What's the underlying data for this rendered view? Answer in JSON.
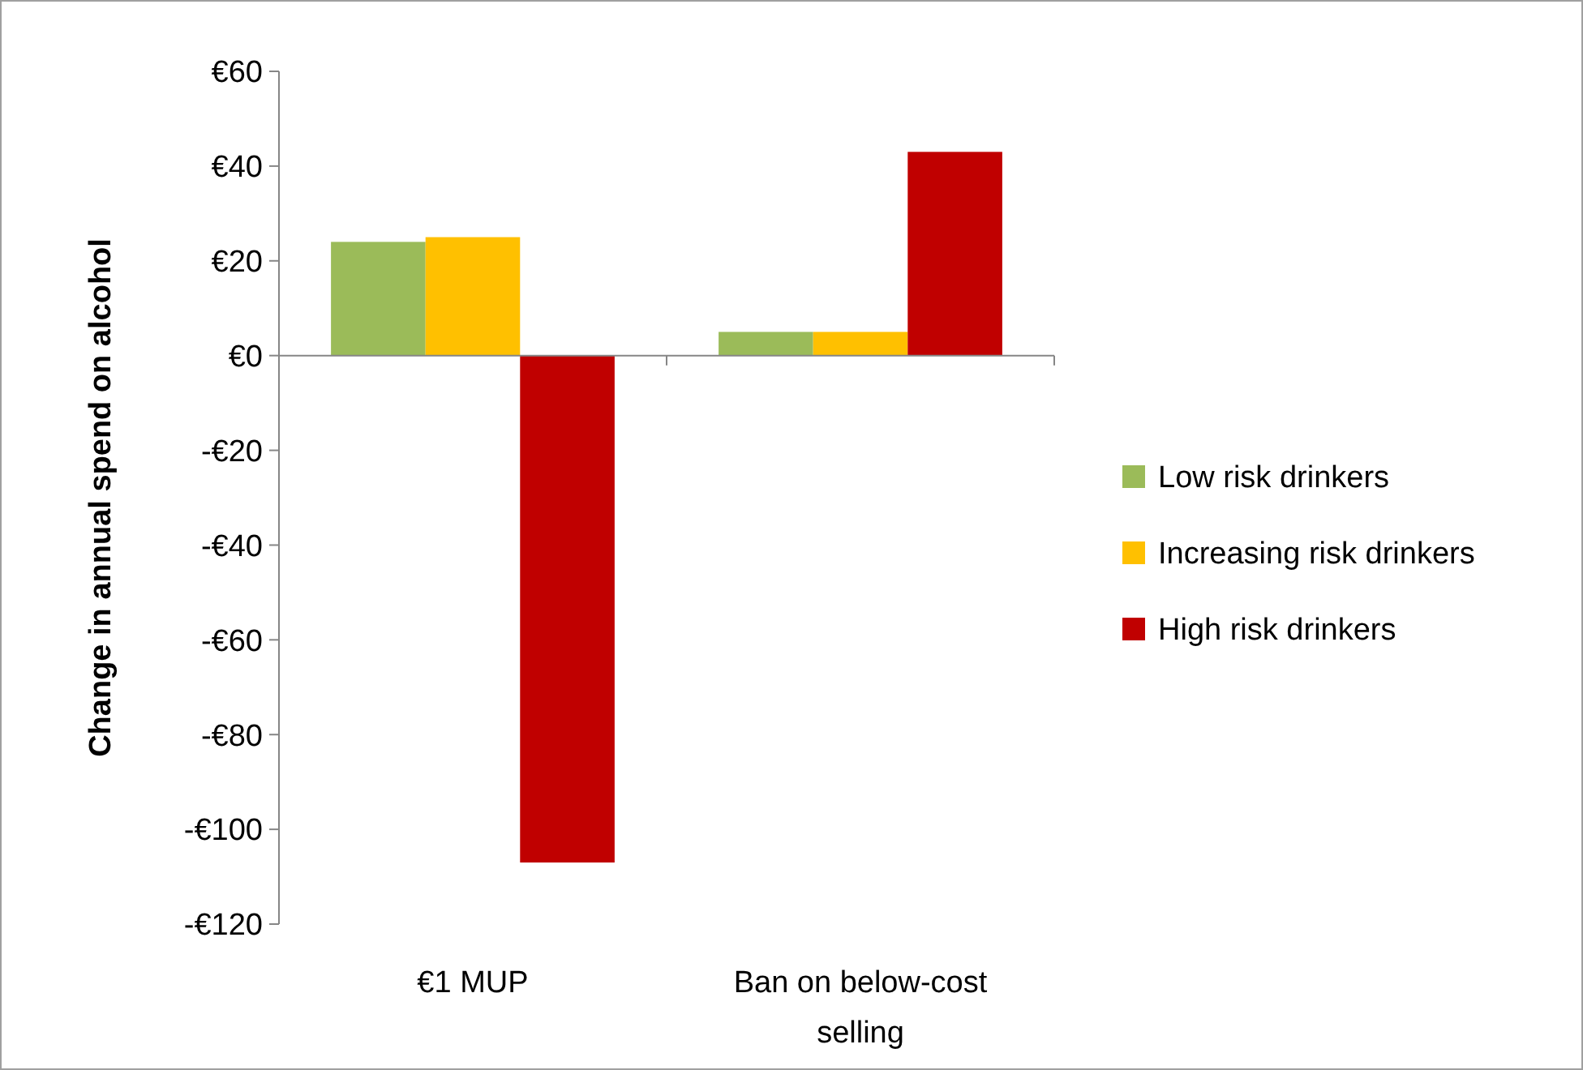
{
  "chart_data": {
    "type": "bar",
    "ylabel": "Change in annual spend on alcohol",
    "categories": [
      "€1 MUP",
      "Ban on below-cost selling"
    ],
    "series": [
      {
        "name": "Low risk drinkers",
        "color": "#9bbb59",
        "values": [
          24,
          5
        ]
      },
      {
        "name": "Increasing risk drinkers",
        "color": "#ffc000",
        "values": [
          25,
          5
        ]
      },
      {
        "name": "High risk drinkers",
        "color": "#c00000",
        "values": [
          -107,
          43
        ]
      }
    ],
    "ylim": [
      -120,
      60
    ],
    "yticks": [
      {
        "value": 60,
        "label": "€60"
      },
      {
        "value": 40,
        "label": "€40"
      },
      {
        "value": 20,
        "label": "€20"
      },
      {
        "value": 0,
        "label": "€0"
      },
      {
        "value": -20,
        "label": "-€20"
      },
      {
        "value": -40,
        "label": "-€40"
      },
      {
        "value": -60,
        "label": "-€60"
      },
      {
        "value": -80,
        "label": "-€80"
      },
      {
        "value": -100,
        "label": "-€100"
      },
      {
        "value": -120,
        "label": "-€120"
      }
    ],
    "legend": "right"
  }
}
